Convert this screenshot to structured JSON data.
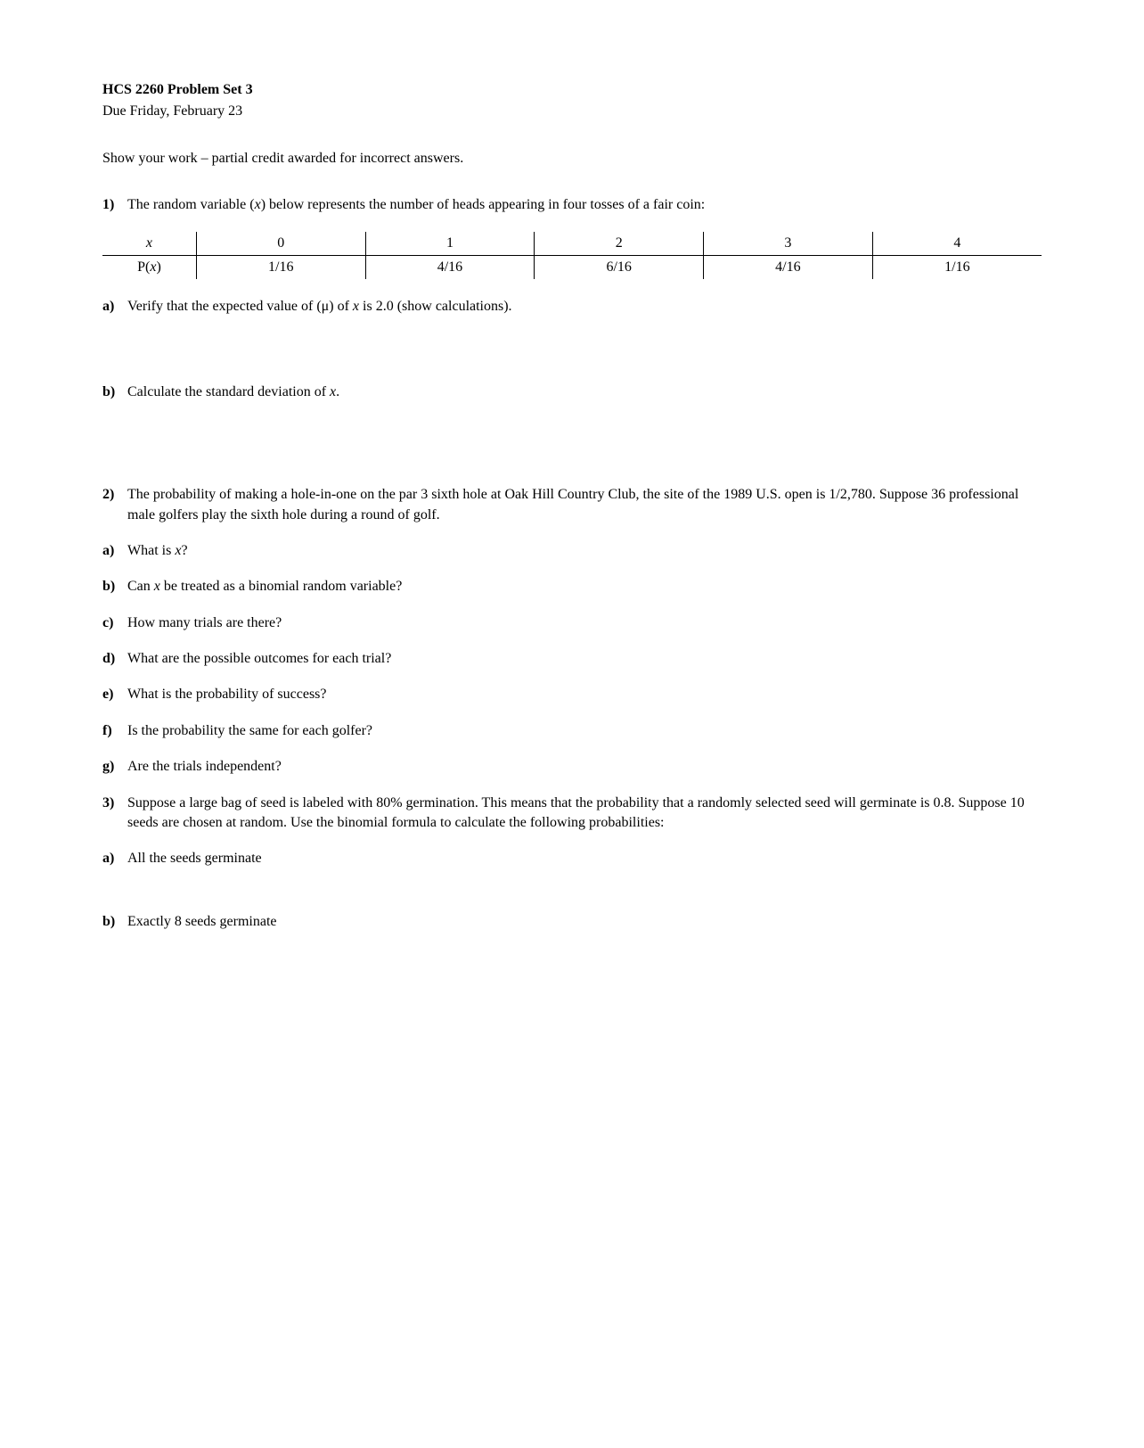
{
  "header": {
    "title": "HCS 2260 Problem Set 3",
    "due": "Due Friday, February 23",
    "instructions": "Show your work – partial credit awarded for incorrect answers."
  },
  "q1": {
    "marker": "1)",
    "text_before": "The random variable (",
    "var": "x",
    "text_after": ") below represents the number of heads appearing in four tosses of a fair coin:",
    "table": {
      "row1_label": "x",
      "row1": [
        "0",
        "1",
        "2",
        "3",
        "4"
      ],
      "row2_label_before": "P(",
      "row2_label_var": "x",
      "row2_label_after": ")",
      "row2": [
        "1/16",
        "4/16",
        "6/16",
        "4/16",
        "1/16"
      ]
    },
    "a": {
      "marker": "a)",
      "text_before": "Verify that the expected value of (μ) of ",
      "var": "x",
      "text_after": " is 2.0 (show calculations)."
    },
    "b": {
      "marker": "b)",
      "text_before": "Calculate the standard deviation of ",
      "var": "x",
      "text_after": "."
    }
  },
  "q2": {
    "marker": "2)",
    "text": "The probability of making a hole-in-one on the par 3 sixth hole at Oak Hill Country Club, the site of the 1989 U.S. open is 1/2,780.  Suppose 36 professional male golfers play the sixth hole during a round of golf.",
    "a": {
      "marker": "a)",
      "text_before": "What is ",
      "var": "x",
      "text_after": "?"
    },
    "b": {
      "marker": "b)",
      "text_before": "Can ",
      "var": "x",
      "text_after": " be treated as a binomial random variable?"
    },
    "c": {
      "marker": "c)",
      "text": "How many trials are there?"
    },
    "d": {
      "marker": "d)",
      "text": "What are the possible outcomes for each trial?"
    },
    "e": {
      "marker": "e)",
      "text": "What is the probability of success?"
    },
    "f": {
      "marker": "f)",
      "text": "Is the probability the same for each golfer?"
    },
    "g": {
      "marker": "g)",
      "text": "Are the trials independent?"
    }
  },
  "q3": {
    "marker": "3)",
    "text": "Suppose a large bag of seed is labeled with 80% germination.  This means that the probability that a randomly selected seed will germinate is 0.8.  Suppose 10 seeds are chosen at random.  Use the binomial formula to calculate the following probabilities:",
    "a": {
      "marker": "a)",
      "text": "All the seeds germinate"
    },
    "b": {
      "marker": "b)",
      "text": "Exactly 8 seeds germinate"
    }
  }
}
